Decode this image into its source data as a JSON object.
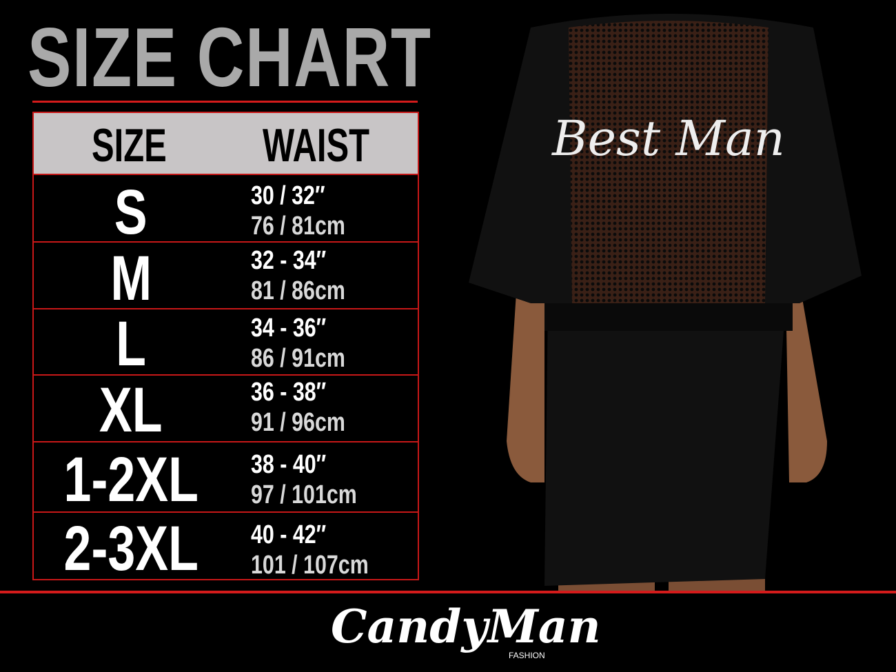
{
  "title": "SIZE CHART",
  "table": {
    "headers": [
      "SIZE",
      "WAIST"
    ],
    "rows": [
      {
        "size": "S",
        "inches": "30 / 32″",
        "cm": "76 / 81cm"
      },
      {
        "size": "M",
        "inches": "32 - 34″",
        "cm": "81 / 86cm"
      },
      {
        "size": "L",
        "inches": "34 - 36″",
        "cm": "86 / 91cm"
      },
      {
        "size": "XL",
        "inches": "36 - 38″",
        "cm": "91 / 96cm"
      },
      {
        "size": "1-2XL",
        "inches": "38 - 40″",
        "cm": "97 / 101cm"
      },
      {
        "size": "2-3XL",
        "inches": "40 - 42″",
        "cm": "101 / 107cm"
      }
    ]
  },
  "product": {
    "print_text": "Best Man"
  },
  "brand": {
    "logo": "CandyMan",
    "sub": "FASHION"
  },
  "colors": {
    "accent": "#d41b1b",
    "header_bg": "#c8c5c6",
    "title": "#a9a9a9"
  }
}
